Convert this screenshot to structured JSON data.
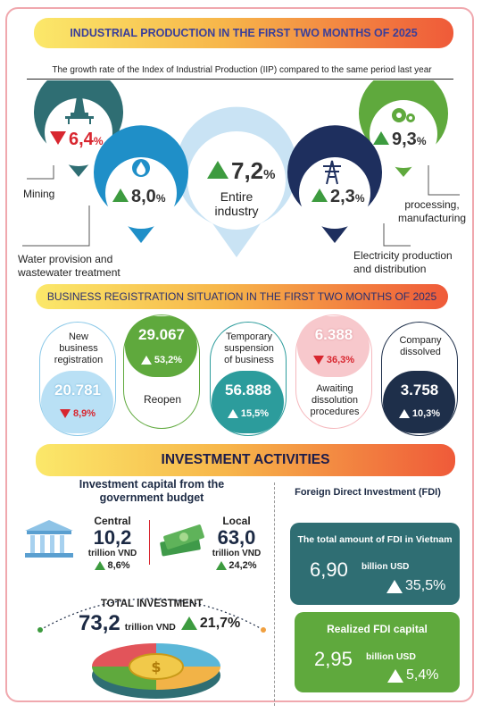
{
  "header": {
    "title": "INDUSTRIAL PRODUCTION IN THE FIRST TWO MONTHS OF 2025"
  },
  "iip": {
    "subtitle": "The growth rate of the Index of Industrial Production (IIP) compared to the same period last year",
    "mining": {
      "value": "6,4",
      "unit": "%",
      "label": "Mining",
      "direction": "down"
    },
    "water": {
      "value": "8,0",
      "unit": "%",
      "label_line1": "Water provision and",
      "label_line2": "wastewater treatment",
      "direction": "up"
    },
    "entire": {
      "value": "7,2",
      "unit": "%",
      "label_line1": "Entire",
      "label_line2": "industry",
      "direction": "up"
    },
    "electricity": {
      "value": "2,3",
      "unit": "%",
      "label_line1": "Electricity production",
      "label_line2": "and distribution",
      "direction": "up"
    },
    "processing": {
      "value": "9,3",
      "unit": "%",
      "label_line1": "processing,",
      "label_line2": "manufacturing",
      "direction": "up"
    }
  },
  "business": {
    "title": "BUSINESS REGISTRATION SITUATION IN THE FIRST TWO MONTHS OF 2025",
    "new": {
      "label_line1": "New",
      "label_line2": "business",
      "label_line3": "registration",
      "value": "20.781",
      "pct": "8,9%",
      "direction": "down"
    },
    "reopen": {
      "label": "Reopen",
      "value": "29.067",
      "pct": "53,2%",
      "direction": "up"
    },
    "temporary": {
      "label_line1": "Temporary",
      "label_line2": "suspension",
      "label_line3": "of business",
      "value": "56.888",
      "pct": "15,5%",
      "direction": "up"
    },
    "awaiting": {
      "label_line1": "Awaiting",
      "label_line2": "dissolution",
      "label_line3": "procedures",
      "value": "6.388",
      "pct": "36,3%",
      "direction": "down"
    },
    "dissolved": {
      "label_line1": "Company",
      "label_line2": "dissolved",
      "value": "3.758",
      "pct": "10,3%",
      "direction": "up"
    }
  },
  "investment": {
    "title": "INVESTMENT ACTIVITIES",
    "budget_title_line1": "Investment capital from the",
    "budget_title_line2": "government budget",
    "central": {
      "label": "Central",
      "value": "10,2",
      "unit": "trillion VND",
      "pct": "8,6%"
    },
    "local": {
      "label": "Local",
      "value": "63,0",
      "unit": "trillion VND",
      "pct": "24,2%"
    },
    "total": {
      "label": "TOTAL INVESTMENT",
      "value": "73,2",
      "unit": "trillion VND",
      "pct": "21,7%"
    },
    "fdi_title": "Foreign Direct Investment (FDI)",
    "fdi_total": {
      "label": "The total amount of FDI in Vietnam",
      "value": "6,90",
      "unit": "billion USD",
      "pct": "35,5%"
    },
    "fdi_realized": {
      "label": "Realized FDI capital",
      "value": "2,95",
      "unit": "billion USD",
      "pct": "5,4%"
    }
  },
  "colors": {
    "mining": "#2f6e73",
    "water": "#1f8fc8",
    "entire": "#c9e3f4",
    "electricity": "#1e2f5e",
    "processing": "#5fa93d",
    "up": "#3d9b3f",
    "down": "#d8262f",
    "fdi_total": "#2f6e73",
    "fdi_realized": "#5fa93d"
  },
  "icons": [
    "oil-rig-icon",
    "water-drop-icon",
    "power-tower-icon",
    "gears-icon",
    "bank-building-icon",
    "money-stack-icon",
    "coin-stack-icon"
  ]
}
